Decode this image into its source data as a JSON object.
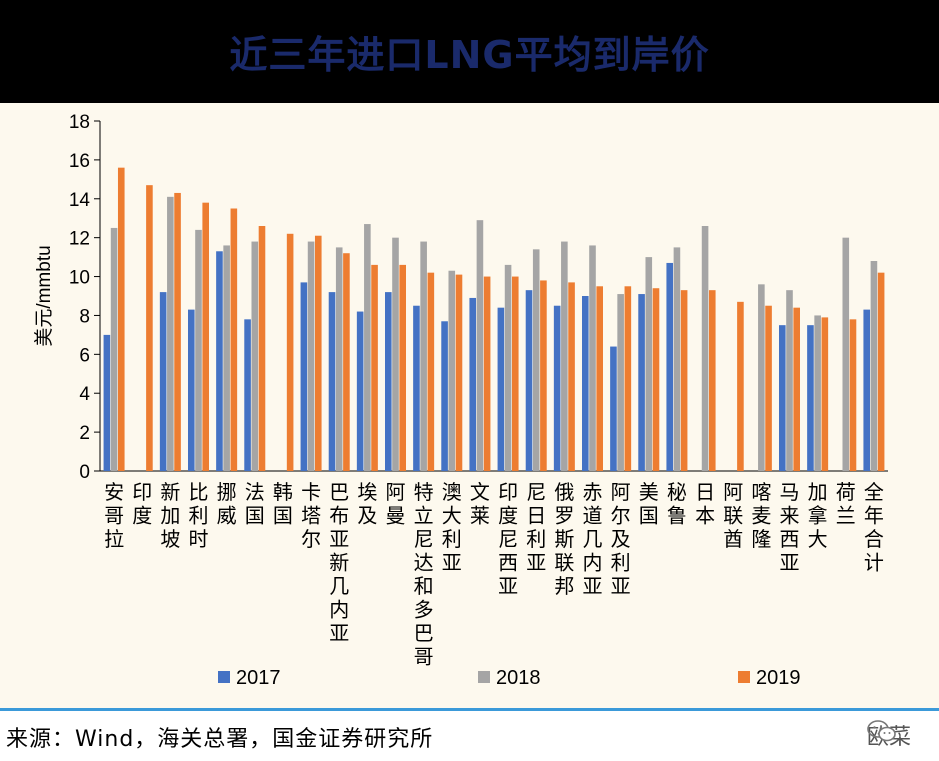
{
  "header": {
    "title": "近三年进口LNG平均到岸价"
  },
  "chart_data": {
    "type": "bar",
    "ylabel": "美元/mmbtu",
    "ylim": [
      0,
      18
    ],
    "yticks": [
      0,
      2,
      4,
      6,
      8,
      10,
      12,
      14,
      16,
      18
    ],
    "legend_position": "bottom",
    "categories": [
      "安哥拉",
      "印度",
      "新加坡",
      "比利时",
      "挪威",
      "法国",
      "韩国",
      "卡塔尔",
      "巴布亚新几内亚",
      "埃及",
      "阿曼",
      "特立尼达和多巴哥",
      "澳大利亚",
      "文莱",
      "印度尼西亚",
      "尼日利亚",
      "俄罗斯联邦",
      "赤道几内亚",
      "阿尔及利亚",
      "美国",
      "秘鲁",
      "日本",
      "阿联酋",
      "喀麦隆",
      "马来西亚",
      "加拿大",
      "荷兰",
      "全年合计"
    ],
    "series": [
      {
        "name": "2017",
        "color": "#4472c4",
        "values": [
          7.0,
          null,
          9.2,
          8.3,
          11.3,
          7.8,
          null,
          9.7,
          9.2,
          8.2,
          9.2,
          8.5,
          7.7,
          8.9,
          8.4,
          9.3,
          8.5,
          9.0,
          6.4,
          9.1,
          10.7,
          null,
          null,
          null,
          7.5,
          7.5,
          null,
          8.3
        ]
      },
      {
        "name": "2018",
        "color": "#a5a5a5",
        "values": [
          12.5,
          null,
          14.1,
          12.4,
          11.6,
          11.8,
          null,
          11.8,
          11.5,
          12.7,
          12.0,
          11.8,
          10.3,
          12.9,
          10.6,
          11.4,
          11.8,
          11.6,
          9.1,
          11.0,
          11.5,
          12.6,
          null,
          9.6,
          9.3,
          8.0,
          12.0,
          10.8
        ]
      },
      {
        "name": "2019",
        "color": "#ed7d31",
        "values": [
          15.6,
          14.7,
          14.3,
          13.8,
          13.5,
          12.6,
          12.2,
          12.1,
          11.2,
          10.6,
          10.6,
          10.2,
          10.1,
          10.0,
          10.0,
          9.8,
          9.7,
          9.5,
          9.5,
          9.4,
          9.3,
          9.3,
          8.7,
          8.5,
          8.4,
          7.9,
          7.8,
          10.2
        ]
      }
    ]
  },
  "footer": {
    "source": "来源：Wind，海关总署，国金证券研究所",
    "watermark": "欧菜",
    "watermark_icon": "wechat-icon"
  }
}
